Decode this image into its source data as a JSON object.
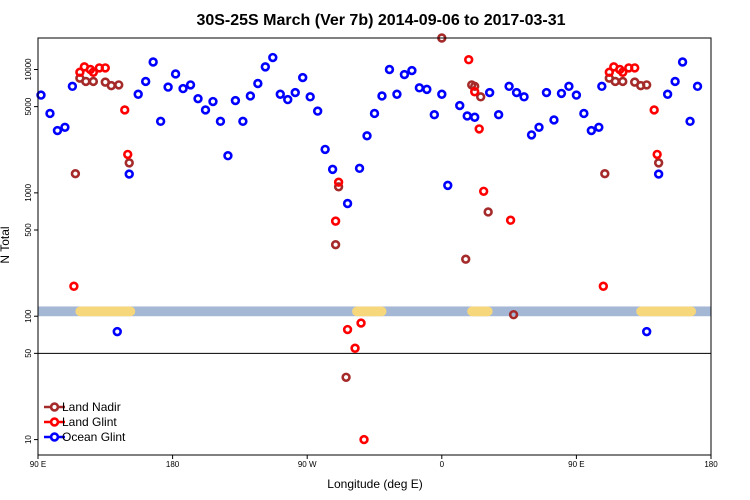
{
  "chart_data": {
    "type": "scatter",
    "title": "30S-25S March (Ver 7b)   2014-09-06 to 2017-03-31",
    "xlabel": "Longitude (deg E)",
    "ylabel": "N Total",
    "x_tick_labels": [
      "90 E",
      "180",
      "90 W",
      "0",
      "90 E",
      "180"
    ],
    "x_tick_values": [
      90,
      180,
      270,
      360,
      450,
      540
    ],
    "xlim": [
      90,
      540
    ],
    "y_scale": "log",
    "ylim": [
      7.5,
      18000
    ],
    "y_tick_labels": [
      "10",
      "50",
      "100",
      "500",
      "1000",
      "5000",
      "10000"
    ],
    "y_tick_values": [
      10,
      50,
      100,
      500,
      1000,
      5000,
      10000
    ],
    "hline": 50,
    "land_band": {
      "y_range": [
        100,
        120
      ],
      "band_color": "#a4b8d6",
      "land_color": "#f7d77b",
      "land_segments": [
        [
          115,
          155
        ],
        [
          300,
          323
        ],
        [
          377,
          394
        ],
        [
          490,
          530
        ]
      ]
    },
    "legend": {
      "placement": "bottom-left",
      "entries": [
        {
          "label": "Land Nadir",
          "color": "#a52a2a"
        },
        {
          "label": "Land Glint",
          "color": "#ff0000"
        },
        {
          "label": "Ocean Glint",
          "color": "#0000ff"
        }
      ]
    },
    "series": [
      {
        "name": "Land Nadir",
        "color": "#a52a2a",
        "points": [
          [
            115,
            1430
          ],
          [
            118,
            8500
          ],
          [
            122,
            8000
          ],
          [
            127,
            8000
          ],
          [
            135,
            7900
          ],
          [
            139,
            7400
          ],
          [
            144,
            7500
          ],
          [
            151,
            1750
          ],
          [
            289,
            380
          ],
          [
            291,
            1120
          ],
          [
            296,
            32
          ],
          [
            360,
            18000
          ],
          [
            376,
            290
          ],
          [
            380,
            7500
          ],
          [
            382,
            7300
          ],
          [
            386,
            6000
          ],
          [
            391,
            700
          ],
          [
            408,
            103
          ],
          [
            469,
            1430
          ],
          [
            472,
            8500
          ],
          [
            476,
            8000
          ],
          [
            481,
            8000
          ],
          [
            489,
            7900
          ],
          [
            493,
            7400
          ],
          [
            497,
            7500
          ],
          [
            505,
            1750
          ]
        ]
      },
      {
        "name": "Land Glint",
        "color": "#ff0000",
        "points": [
          [
            114,
            175
          ],
          [
            118,
            9500
          ],
          [
            121,
            10500
          ],
          [
            125,
            10000
          ],
          [
            127,
            9500
          ],
          [
            131,
            10300
          ],
          [
            135,
            10300
          ],
          [
            148,
            4700
          ],
          [
            150,
            2050
          ],
          [
            289,
            590
          ],
          [
            291,
            1220
          ],
          [
            297,
            78
          ],
          [
            302,
            55
          ],
          [
            306,
            88
          ],
          [
            308,
            10
          ],
          [
            378,
            12000
          ],
          [
            382,
            6600
          ],
          [
            385,
            3300
          ],
          [
            388,
            1030
          ],
          [
            406,
            600
          ],
          [
            468,
            175
          ],
          [
            472,
            9500
          ],
          [
            475,
            10500
          ],
          [
            479,
            10000
          ],
          [
            481,
            9500
          ],
          [
            485,
            10300
          ],
          [
            489,
            10300
          ],
          [
            502,
            4700
          ],
          [
            504,
            2050
          ]
        ]
      },
      {
        "name": "Ocean Glint",
        "color": "#0000ff",
        "points": [
          [
            92,
            6200
          ],
          [
            98,
            4400
          ],
          [
            103,
            3200
          ],
          [
            108,
            3400
          ],
          [
            113,
            7300
          ],
          [
            143,
            75
          ],
          [
            151,
            1420
          ],
          [
            157,
            6300
          ],
          [
            162,
            8000
          ],
          [
            167,
            11500
          ],
          [
            172,
            3800
          ],
          [
            177,
            7200
          ],
          [
            182,
            9200
          ],
          [
            187,
            7000
          ],
          [
            192,
            7500
          ],
          [
            197,
            5800
          ],
          [
            202,
            4700
          ],
          [
            207,
            5500
          ],
          [
            212,
            3800
          ],
          [
            217,
            2000
          ],
          [
            222,
            5600
          ],
          [
            227,
            3800
          ],
          [
            232,
            6100
          ],
          [
            237,
            7700
          ],
          [
            242,
            10500
          ],
          [
            247,
            12500
          ],
          [
            252,
            6300
          ],
          [
            257,
            5700
          ],
          [
            262,
            6500
          ],
          [
            267,
            8600
          ],
          [
            272,
            6000
          ],
          [
            277,
            4600
          ],
          [
            282,
            2250
          ],
          [
            287,
            1550
          ],
          [
            297,
            820
          ],
          [
            305,
            1580
          ],
          [
            310,
            2900
          ],
          [
            315,
            4400
          ],
          [
            320,
            6100
          ],
          [
            325,
            10000
          ],
          [
            330,
            6300
          ],
          [
            335,
            9100
          ],
          [
            340,
            9800
          ],
          [
            345,
            7100
          ],
          [
            350,
            6900
          ],
          [
            355,
            4300
          ],
          [
            360,
            6300
          ],
          [
            364,
            1150
          ],
          [
            372,
            5100
          ],
          [
            377,
            4200
          ],
          [
            382,
            4100
          ],
          [
            392,
            6500
          ],
          [
            398,
            4300
          ],
          [
            405,
            7300
          ],
          [
            410,
            6500
          ],
          [
            415,
            6000
          ],
          [
            420,
            2950
          ],
          [
            425,
            3400
          ],
          [
            430,
            6500
          ],
          [
            435,
            3900
          ],
          [
            440,
            6400
          ],
          [
            445,
            7300
          ],
          [
            450,
            6200
          ],
          [
            455,
            4400
          ],
          [
            460,
            3200
          ],
          [
            465,
            3400
          ],
          [
            467,
            7300
          ],
          [
            497,
            75
          ],
          [
            505,
            1420
          ],
          [
            511,
            6300
          ],
          [
            516,
            8000
          ],
          [
            521,
            11500
          ],
          [
            526,
            3800
          ],
          [
            531,
            7300
          ]
        ]
      }
    ]
  }
}
